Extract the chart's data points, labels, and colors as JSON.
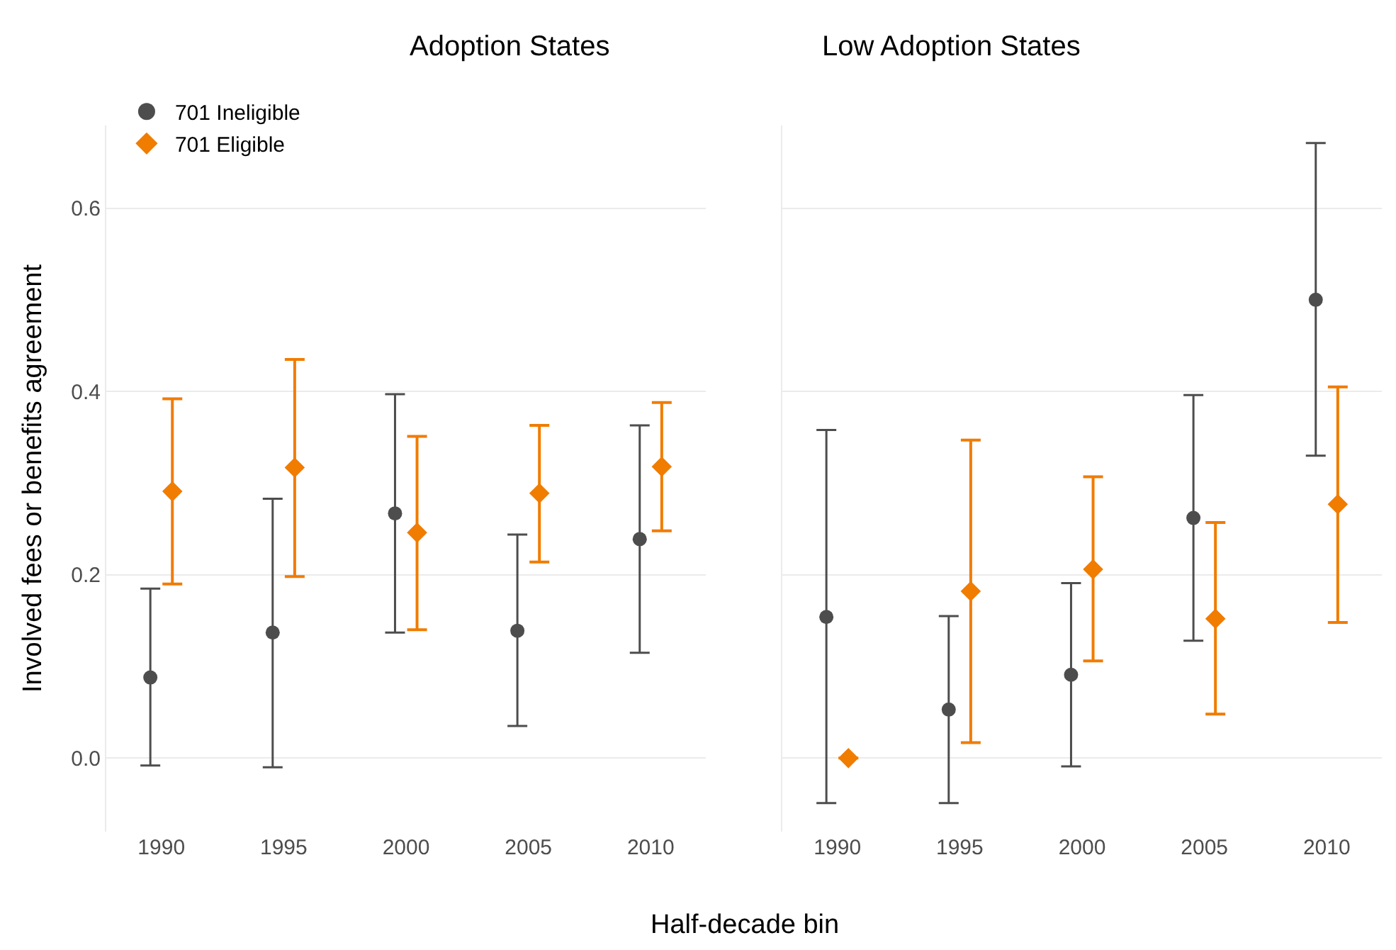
{
  "chart_data": [
    {
      "type": "scatter",
      "title": "Adoption States",
      "xlabel": "Half-decade bin",
      "ylabel": "Involved fees or benefits agreement",
      "categories": [
        "1990",
        "1995",
        "2000",
        "2005",
        "2010"
      ],
      "ylim": [
        -0.08,
        0.69
      ],
      "yticks": [
        {
          "value": 0,
          "label": "0.0"
        },
        {
          "value": 0.2,
          "label": "0.2"
        },
        {
          "value": 0.4,
          "label": "0.4"
        },
        {
          "value": 0.6,
          "label": "0.6"
        }
      ],
      "grid": "y",
      "legend": "top left",
      "series": [
        {
          "name": "701 Ineligible",
          "color": "#4d4d4d",
          "marker": "circle",
          "values": [
            0.088,
            0.137,
            0.267,
            0.139,
            0.239
          ],
          "errors": [
            [
              -0.008,
              0.185
            ],
            [
              -0.01,
              0.283
            ],
            [
              0.137,
              0.397
            ],
            [
              0.035,
              0.244
            ],
            [
              0.115,
              0.363
            ]
          ]
        },
        {
          "name": "701 Eligible",
          "color": "#f07c00",
          "marker": "diamond",
          "values": [
            0.291,
            0.317,
            0.246,
            0.289,
            0.318
          ],
          "errors": [
            [
              0.19,
              0.392
            ],
            [
              0.198,
              0.435
            ],
            [
              0.14,
              0.351
            ],
            [
              0.214,
              0.363
            ],
            [
              0.248,
              0.388
            ]
          ]
        }
      ]
    },
    {
      "type": "scatter",
      "title": "Low Adoption States",
      "categories": [
        "1990",
        "1995",
        "2000",
        "2005",
        "2010"
      ],
      "ylim": [
        -0.08,
        0.69
      ],
      "yticks": [
        {
          "value": 0,
          "label": null
        },
        {
          "value": 0.2,
          "label": null
        },
        {
          "value": 0.4,
          "label": null
        },
        {
          "value": 0.6,
          "label": null
        }
      ],
      "grid": "y",
      "tick_labels": "x",
      "series": [
        {
          "color": "#4d4d4d",
          "marker": "circle",
          "values": [
            0.154,
            0.053,
            0.091,
            0.262,
            0.5
          ],
          "errors": [
            [
              -0.049,
              0.358
            ],
            [
              -0.049,
              0.155
            ],
            [
              -0.009,
              0.191
            ],
            [
              0.128,
              0.396
            ],
            [
              0.33,
              0.671
            ]
          ]
        },
        {
          "color": "#f07c00",
          "marker": "diamond",
          "values": [
            0.0,
            0.182,
            0.206,
            0.152,
            0.277
          ],
          "errors": [
            [
              0.0,
              0.0
            ],
            [
              0.017,
              0.347
            ],
            [
              0.106,
              0.307
            ],
            [
              0.048,
              0.257
            ],
            [
              0.148,
              0.405
            ]
          ]
        }
      ]
    }
  ]
}
